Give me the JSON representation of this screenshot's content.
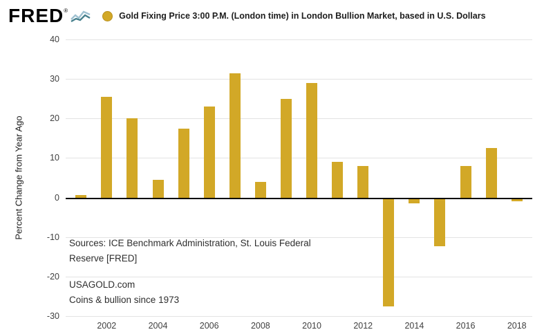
{
  "header": {
    "logo": "FRED",
    "registered": "®",
    "legend_marker_color": "#d2a827",
    "title": "Gold Fixing Price 3:00 P.M. (London time) in London Bullion Market, based in U.S. Dollars"
  },
  "chart_data": {
    "type": "bar",
    "title": "Gold Fixing Price 3:00 P.M. (London time) in London Bullion Market, based in U.S. Dollars",
    "xlabel": "",
    "ylabel": "Percent Change from Year Ago",
    "ylim": [
      -30,
      40
    ],
    "yticks": [
      40,
      30,
      20,
      10,
      0,
      -10,
      -20,
      -30
    ],
    "xticks": [
      "2002",
      "2004",
      "2006",
      "2008",
      "2010",
      "2012",
      "2014",
      "2016",
      "2018"
    ],
    "categories": [
      2001,
      2002,
      2003,
      2004,
      2005,
      2006,
      2007,
      2008,
      2009,
      2010,
      2011,
      2012,
      2013,
      2014,
      2015,
      2016,
      2017,
      2018
    ],
    "values": [
      0.6,
      25.5,
      20,
      4.5,
      17.5,
      23,
      31.5,
      4,
      25,
      29,
      9,
      8,
      -27.5,
      -1.5,
      -12.3,
      8,
      12.5,
      -1
    ],
    "bar_color": "#d2a827",
    "grid": true,
    "zero_line_color": "#000000",
    "legend_position": "top"
  },
  "annotations": {
    "sources_line1": "Sources:  ICE Benchmark Administration, St. Louis Federal",
    "sources_line2": "Reserve [FRED]",
    "credit_line1": "USAGOLD.com",
    "credit_line2": "Coins & bullion since 1973"
  }
}
